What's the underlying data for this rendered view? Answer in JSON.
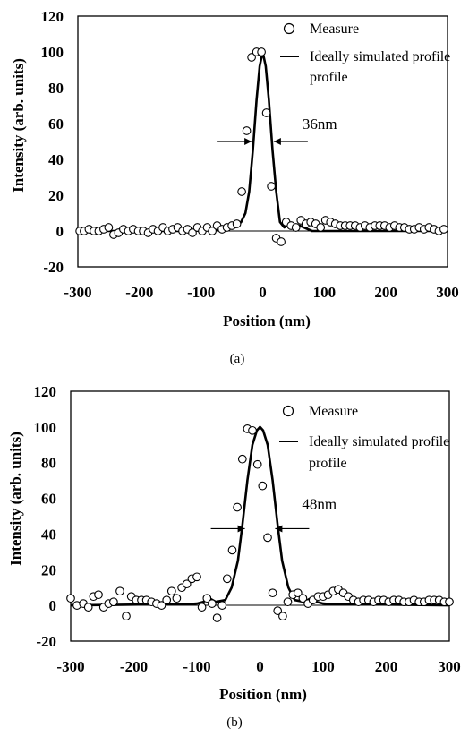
{
  "chart_data": [
    {
      "type": "scatter",
      "caption": "(a)",
      "xlabel": "Position (nm)",
      "ylabel": "Intensity (arb. units)",
      "xlim": [
        -300,
        300
      ],
      "ylim": [
        -20,
        120
      ],
      "xticks": [
        -300,
        -200,
        -100,
        0,
        100,
        200,
        300
      ],
      "yticks": [
        -20,
        0,
        20,
        40,
        60,
        80,
        100,
        120
      ],
      "grid": false,
      "legend_position": "top-right",
      "annotation": "36nm",
      "annotation_fwhm_nm": 36,
      "annotation_level": 50,
      "series": [
        {
          "name": "Measure",
          "kind": "open-circle-markers",
          "x": [
            -297,
            -290,
            -282,
            -274,
            -266,
            -258,
            -250,
            -242,
            -234,
            -226,
            -218,
            -210,
            -202,
            -194,
            -186,
            -178,
            -170,
            -162,
            -154,
            -146,
            -138,
            -130,
            -122,
            -114,
            -106,
            -98,
            -90,
            -82,
            -74,
            -66,
            -58,
            -50,
            -42,
            -34,
            -26,
            -18,
            -10,
            -2,
            6,
            14,
            22,
            30,
            38,
            46,
            54,
            62,
            70,
            78,
            86,
            94,
            102,
            110,
            118,
            126,
            134,
            142,
            150,
            158,
            166,
            174,
            182,
            190,
            198,
            206,
            214,
            222,
            230,
            238,
            246,
            254,
            262,
            270,
            278,
            286,
            294
          ],
          "y": [
            0,
            0,
            1,
            0,
            0,
            1,
            2,
            -2,
            -1,
            1,
            0,
            1,
            0,
            0,
            -1,
            1,
            0,
            2,
            0,
            1,
            2,
            0,
            1,
            -1,
            2,
            0,
            2,
            0,
            3,
            1,
            2,
            3,
            4,
            22,
            56,
            97,
            100,
            100,
            66,
            25,
            -4,
            -6,
            5,
            3,
            2,
            6,
            4,
            5,
            4,
            2,
            6,
            5,
            4,
            3,
            3,
            3,
            3,
            2,
            3,
            2,
            3,
            3,
            3,
            2,
            3,
            2,
            2,
            1,
            1,
            2,
            1,
            2,
            1,
            0,
            1
          ]
        },
        {
          "name": "Ideally simulated profile",
          "kind": "line",
          "x": [
            -300,
            -120,
            -80,
            -60,
            -45,
            -35,
            -28,
            -22,
            -16,
            -10,
            -5,
            0,
            5,
            10,
            16,
            22,
            28,
            35,
            45,
            60,
            80,
            120,
            200,
            300
          ],
          "y": [
            0,
            0,
            0.5,
            1,
            2,
            5,
            10,
            22,
            45,
            73,
            92,
            100,
            92,
            73,
            45,
            22,
            5,
            2,
            4,
            3,
            0,
            0,
            0,
            0
          ]
        }
      ]
    },
    {
      "type": "scatter",
      "caption": "(b)",
      "xlabel": "Position (nm)",
      "ylabel": "Intensity (arb. units)",
      "xlim": [
        -300,
        300
      ],
      "ylim": [
        -20,
        120
      ],
      "xticks": [
        -300,
        -200,
        -100,
        0,
        100,
        200,
        300
      ],
      "yticks": [
        -20,
        0,
        20,
        40,
        60,
        80,
        100,
        120
      ],
      "grid": false,
      "legend_position": "top-right",
      "annotation": "48nm",
      "annotation_fwhm_nm": 48,
      "annotation_level": 43,
      "series": [
        {
          "name": "Measure",
          "kind": "open-circle-markers",
          "x": [
            -300,
            -290,
            -280,
            -272,
            -264,
            -256,
            -248,
            -240,
            -232,
            -222,
            -212,
            -204,
            -196,
            -188,
            -180,
            -172,
            -164,
            -156,
            -148,
            -140,
            -132,
            -124,
            -116,
            -108,
            -100,
            -92,
            -84,
            -76,
            -68,
            -60,
            -52,
            -44,
            -36,
            -28,
            -20,
            -12,
            -4,
            4,
            12,
            20,
            28,
            36,
            44,
            52,
            60,
            68,
            76,
            84,
            92,
            100,
            108,
            116,
            124,
            132,
            140,
            148,
            156,
            164,
            172,
            180,
            188,
            196,
            204,
            212,
            220,
            228,
            236,
            244,
            252,
            260,
            268,
            276,
            284,
            292,
            300
          ],
          "y": [
            4,
            0,
            1,
            -1,
            5,
            6,
            -1,
            1,
            2,
            8,
            -6,
            5,
            3,
            3,
            3,
            2,
            1,
            0,
            3,
            8,
            4,
            10,
            12,
            15,
            16,
            -1,
            4,
            1,
            -7,
            0,
            15,
            31,
            55,
            82,
            99,
            98,
            79,
            67,
            38,
            7,
            -3,
            -6,
            2,
            6,
            7,
            4,
            1,
            3,
            5,
            5,
            6,
            8,
            9,
            7,
            5,
            3,
            2,
            3,
            3,
            2,
            3,
            3,
            2,
            3,
            3,
            2,
            2,
            3,
            2,
            2,
            3,
            3,
            3,
            2,
            2
          ]
        },
        {
          "name": "Ideally simulated profile",
          "kind": "line",
          "x": [
            -300,
            -180,
            -120,
            -100,
            -90,
            -80,
            -70,
            -55,
            -45,
            -35,
            -28,
            -20,
            -12,
            -5,
            0,
            5,
            12,
            20,
            28,
            35,
            45,
            55,
            70,
            80,
            90,
            100,
            120,
            180,
            300
          ],
          "y": [
            0,
            0.5,
            0.5,
            1,
            2,
            4,
            2,
            3,
            10,
            25,
            45,
            70,
            90,
            98,
            100,
            98,
            90,
            70,
            45,
            25,
            10,
            3,
            2,
            4,
            2,
            1,
            0.5,
            0.5,
            0
          ]
        }
      ]
    }
  ]
}
